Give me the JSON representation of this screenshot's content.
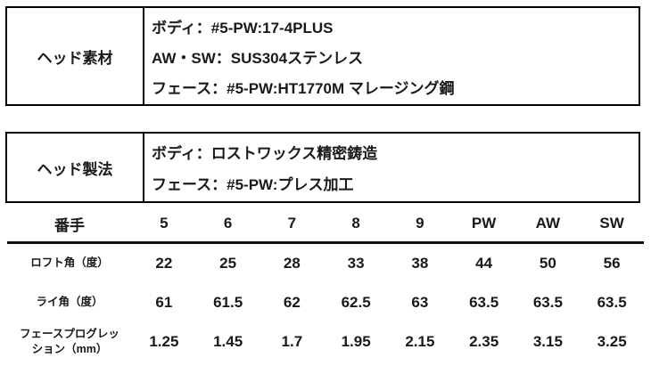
{
  "page": {
    "background": "#ffffff",
    "text_color": "#1a1a1a",
    "border_color": "#000000"
  },
  "material_table": {
    "header": "ヘッド素材",
    "rows": [
      "ボディ：#5-PW:17-4PLUS",
      "AW・SW：SUS304ステンレス",
      "フェース：#5-PW:HT1770M マレージング鋼"
    ]
  },
  "method_table": {
    "header": "ヘッド製法",
    "rows": [
      "ボディ：ロストワックス精密鋳造",
      "フェース：#5-PW:プレス加工"
    ]
  },
  "spec_table": {
    "header_row": [
      "番手",
      "5",
      "6",
      "7",
      "8",
      "9",
      "PW",
      "AW",
      "SW"
    ],
    "rows": [
      {
        "label": "ロフト角（度）",
        "values": [
          "22",
          "25",
          "28",
          "33",
          "38",
          "44",
          "50",
          "56"
        ]
      },
      {
        "label": "ライ角（度）",
        "values": [
          "61",
          "61.5",
          "62",
          "62.5",
          "63",
          "63.5",
          "63.5",
          "63.5"
        ]
      },
      {
        "label": "フェースプログレッション（mm）",
        "values": [
          "1.25",
          "1.45",
          "1.7",
          "1.95",
          "2.15",
          "2.35",
          "3.15",
          "3.25"
        ]
      }
    ]
  }
}
